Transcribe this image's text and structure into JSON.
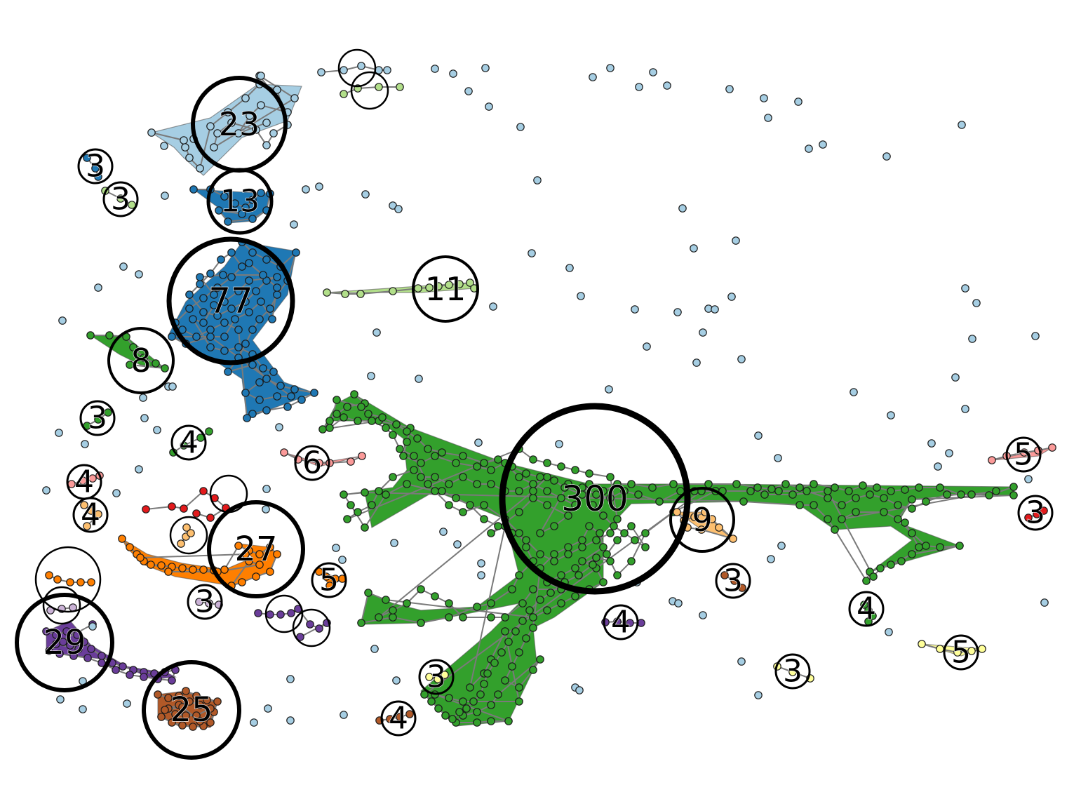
{
  "palette": {
    "light_blue": "#a6cee3",
    "dark_blue": "#1f78b4",
    "light_green": "#b2df8a",
    "green": "#33a02c",
    "pink": "#fb9a99",
    "red": "#e31a1c",
    "light_orange": "#fdbf6f",
    "orange": "#ff7f00",
    "lavender": "#cab2d6",
    "purple": "#6a3d9a",
    "yellow": "#ffff99",
    "brown": "#b15928",
    "node_outline": "#1a1a1a",
    "ring": "#000000"
  },
  "clusters": [
    {
      "label": "23",
      "color": "light_blue"
    },
    {
      "label": "13",
      "color": "dark_blue"
    },
    {
      "label": "77",
      "color": "dark_blue"
    },
    {
      "label": "11",
      "color": "light_green"
    },
    {
      "label": "8",
      "color": "green"
    },
    {
      "label": "300",
      "color": "green"
    },
    {
      "label": "9",
      "color": "light_orange"
    },
    {
      "label": "27",
      "color": "orange"
    },
    {
      "label": "29",
      "color": "purple"
    },
    {
      "label": "25",
      "color": "brown"
    },
    {
      "label": "6",
      "color": "pink"
    },
    {
      "label": "5",
      "color": "pink"
    },
    {
      "label": "5",
      "color": "orange"
    },
    {
      "label": "5",
      "color": "yellow"
    },
    {
      "label": "4",
      "color": "green"
    },
    {
      "label": "4",
      "color": "pink"
    },
    {
      "label": "4",
      "color": "light_orange"
    },
    {
      "label": "4",
      "color": "purple"
    },
    {
      "label": "4",
      "color": "green"
    },
    {
      "label": "4",
      "color": "brown"
    },
    {
      "label": "3",
      "color": "dark_blue"
    },
    {
      "label": "3",
      "color": "light_green"
    },
    {
      "label": "3",
      "color": "green"
    },
    {
      "label": "3",
      "color": "red"
    },
    {
      "label": "3",
      "color": "brown"
    },
    {
      "label": "3",
      "color": "lavender"
    },
    {
      "label": "3",
      "color": "yellow"
    },
    {
      "label": "3",
      "color": "yellow"
    }
  ],
  "unlabeled_groups": [
    {
      "color": "light_blue"
    },
    {
      "color": "light_green"
    },
    {
      "color": "red"
    },
    {
      "color": "light_orange"
    },
    {
      "color": "orange"
    },
    {
      "color": "lavender"
    },
    {
      "color": "purple"
    }
  ]
}
